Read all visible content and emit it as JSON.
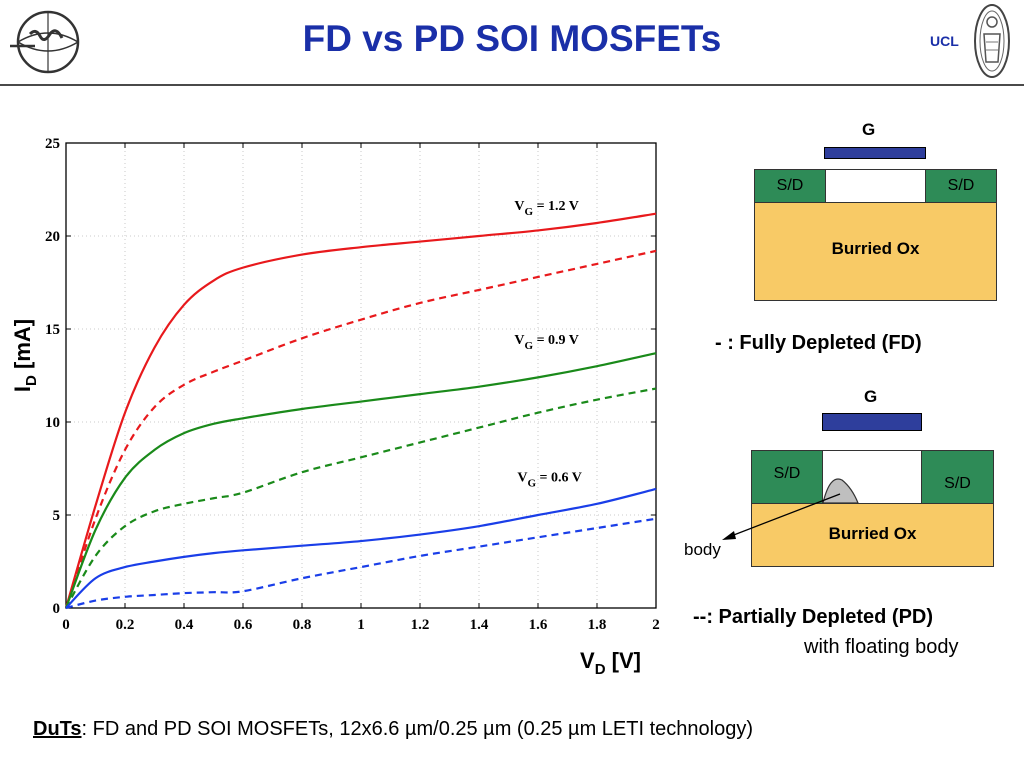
{
  "slide": {
    "title": "FD vs PD SOI MOSFETs",
    "university": "UCL",
    "footer_label": "DuTs",
    "footer_text": ": FD and PD SOI MOSFETs, 12x6.6 µm/0.25 µm (0.25 µm LETI technology)"
  },
  "chart_data": {
    "type": "line",
    "title": "",
    "xlabel_main": "V",
    "xlabel_sub": "D",
    "xlabel_unit": " [V]",
    "ylabel_main": "I",
    "ylabel_sub": "D",
    "ylabel_unit": " [mA]",
    "xlim": [
      0,
      2
    ],
    "ylim": [
      0,
      25
    ],
    "xticks": [
      0,
      0.2,
      0.4,
      0.6,
      0.8,
      1,
      1.2,
      1.4,
      1.6,
      1.8,
      2
    ],
    "xtick_labels": [
      "0",
      "0.2",
      "0.4",
      "0.6",
      "0.8",
      "1",
      "1.2",
      "1.4",
      "1.6",
      "1.8",
      "2"
    ],
    "yticks": [
      0,
      5,
      10,
      15,
      20,
      25
    ],
    "ytick_labels": [
      "0",
      "5",
      "10",
      "15",
      "20",
      "25"
    ],
    "grid": true,
    "x": [
      0,
      0.1,
      0.2,
      0.3,
      0.4,
      0.5,
      0.6,
      0.8,
      1.0,
      1.2,
      1.4,
      1.6,
      1.8,
      2.0
    ],
    "series": [
      {
        "color": "#e8191c",
        "dash": false,
        "values": [
          0,
          5.5,
          10.5,
          14.0,
          16.3,
          17.6,
          18.3,
          19.0,
          19.4,
          19.7,
          20.0,
          20.3,
          20.7,
          21.2
        ]
      },
      {
        "color": "#e8191c",
        "dash": true,
        "values": [
          0,
          4.8,
          8.5,
          10.8,
          12.0,
          12.7,
          13.3,
          14.5,
          15.5,
          16.4,
          17.1,
          17.8,
          18.5,
          19.2
        ]
      },
      {
        "color": "#1a8a1a",
        "dash": false,
        "values": [
          0,
          4.2,
          7.0,
          8.5,
          9.4,
          9.9,
          10.2,
          10.7,
          11.1,
          11.5,
          11.9,
          12.4,
          13.0,
          13.7
        ]
      },
      {
        "color": "#1a8a1a",
        "dash": true,
        "values": [
          0,
          2.8,
          4.4,
          5.2,
          5.6,
          5.9,
          6.2,
          7.3,
          8.1,
          8.9,
          9.7,
          10.5,
          11.2,
          11.8
        ]
      },
      {
        "color": "#1a3ee8",
        "dash": false,
        "values": [
          0,
          1.6,
          2.2,
          2.5,
          2.75,
          2.95,
          3.1,
          3.35,
          3.6,
          3.95,
          4.4,
          5.0,
          5.6,
          6.4
        ]
      },
      {
        "color": "#1a3ee8",
        "dash": true,
        "values": [
          0,
          0.4,
          0.6,
          0.7,
          0.8,
          0.85,
          0.9,
          1.6,
          2.2,
          2.8,
          3.3,
          3.8,
          4.3,
          4.8
        ]
      }
    ],
    "annotations": [
      {
        "main": "V",
        "sub": "G",
        "text": " = 1.2 V",
        "x": 1.52,
        "y": 21.4
      },
      {
        "main": "V",
        "sub": "G",
        "text": " = 0.9 V",
        "x": 1.52,
        "y": 14.2
      },
      {
        "main": "V",
        "sub": "G",
        "text": " = 0.6 V",
        "x": 1.53,
        "y": 6.8
      }
    ]
  },
  "diagrams": {
    "fd": {
      "gate_label": "G",
      "sd_left": "S/D",
      "sd_right": "S/D",
      "oxide_label": "Burried Ox",
      "caption": "- : Fully Depleted (FD)"
    },
    "pd": {
      "gate_label": "G",
      "sd_left": "S/D",
      "sd_right": "S/D",
      "oxide_label": "Burried Ox",
      "body_label": "body",
      "caption_line1": "--: Partially Depleted (PD)",
      "caption_line2": "with floating body"
    }
  }
}
